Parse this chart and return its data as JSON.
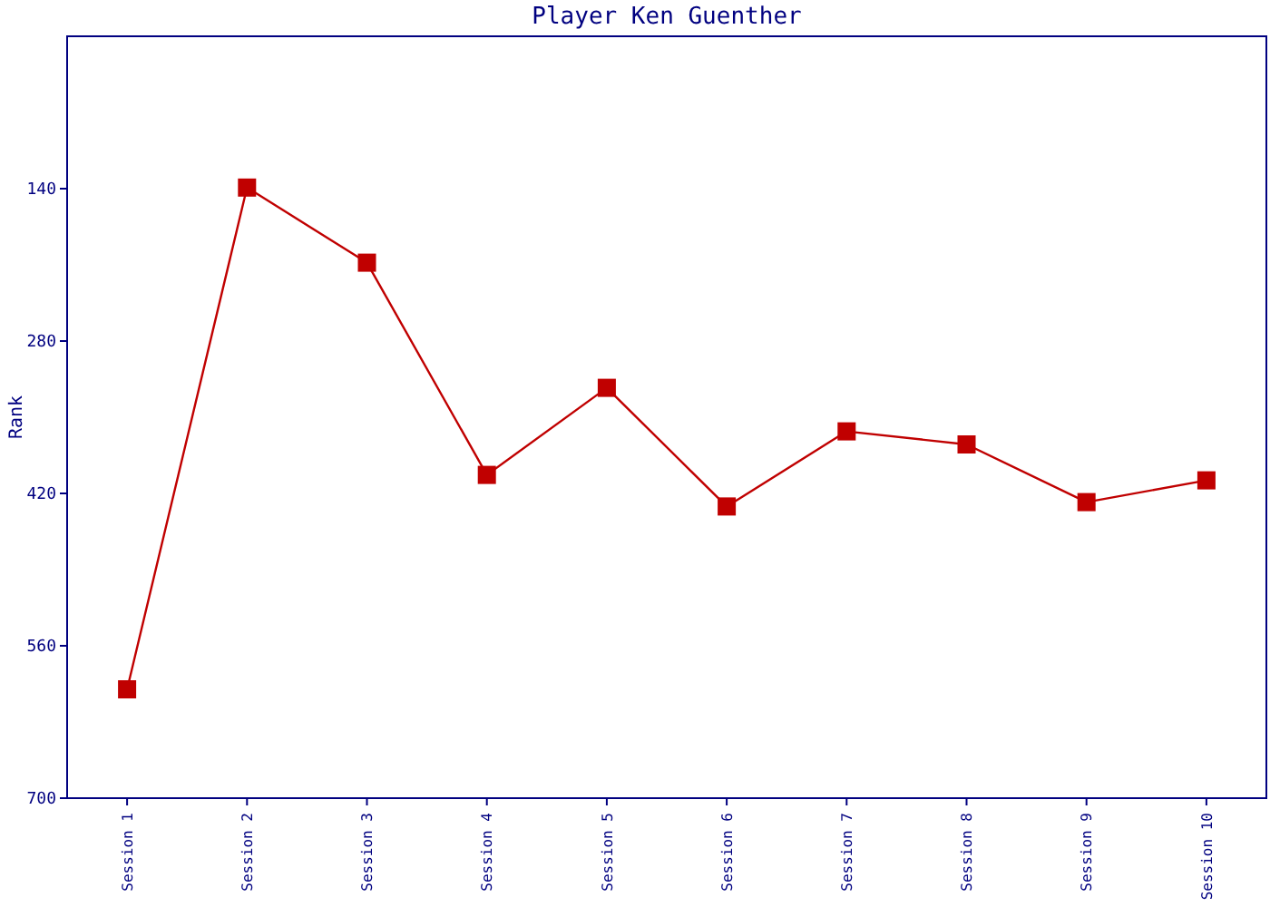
{
  "chart_data": {
    "type": "line",
    "title": "Player Ken Guenther",
    "ylabel": "Rank",
    "categories": [
      "Session 1",
      "Session 2",
      "Session 3",
      "Session 4",
      "Session 5",
      "Session 6",
      "Session 7",
      "Session 8",
      "Session 9",
      "Session 10"
    ],
    "series": [
      {
        "color": "#c00000",
        "values": [
          600,
          139,
          208,
          403,
          323,
          432,
          363,
          375,
          428,
          408
        ]
      }
    ],
    "ylim": [
      700,
      0
    ],
    "yticks": [
      140,
      280,
      420,
      560,
      700
    ],
    "marker": "square",
    "line_style": "solid",
    "grid": false
  }
}
